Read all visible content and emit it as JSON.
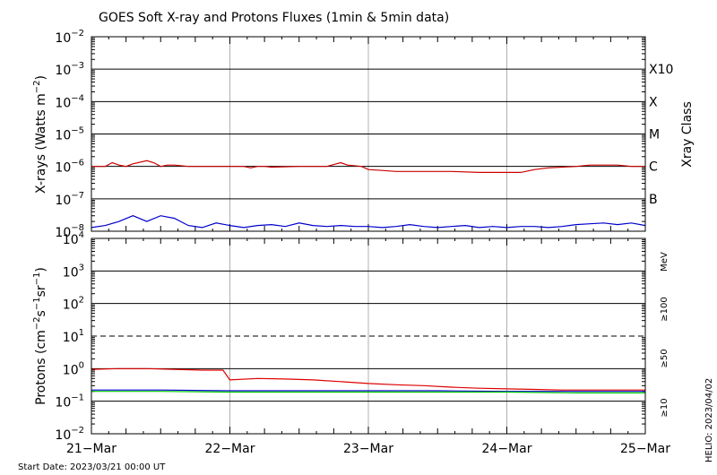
{
  "chart_data": [
    {
      "panel": "xray",
      "type": "line",
      "title": "GOES Soft X-ray and Protons Fluxes   (1min & 5min data)",
      "ylabel_base": "X-rays (Watts m",
      "ylabel_exp": "−2",
      "ylabel_close": ")",
      "ylabel_right": "Xray Class",
      "yscale": "log",
      "ylim_exp": [
        -8,
        -2
      ],
      "ytick_exps": [
        -8,
        -7,
        -6,
        -5,
        -4,
        -3,
        -2
      ],
      "ytick_exp_labels": [
        "−8",
        "−7",
        "−6",
        "−5",
        "−4",
        "−3",
        "−2"
      ],
      "ytick_base": "10",
      "classes": [
        {
          "label": "B",
          "exp": -7
        },
        {
          "label": "C",
          "exp": -6
        },
        {
          "label": "M",
          "exp": -5
        },
        {
          "label": "X",
          "exp": -4
        },
        {
          "label": "X10",
          "exp": -3
        }
      ],
      "series": [
        {
          "color": "#cc0000",
          "x": [
            0,
            0.1,
            0.15,
            0.2,
            0.25,
            0.3,
            0.4,
            0.45,
            0.5,
            0.55,
            0.6,
            0.7,
            0.8,
            0.9,
            1.0,
            1.1,
            1.15,
            1.2,
            1.25,
            1.3,
            1.5,
            1.7,
            1.8,
            1.85,
            1.95,
            2.0,
            2.1,
            2.2,
            2.4,
            2.6,
            2.8,
            3.0,
            3.1,
            3.2,
            3.3,
            3.5,
            3.6,
            3.7,
            3.8,
            3.9,
            4.0
          ],
          "y": [
            1e-06,
            1e-06,
            1.3e-06,
            1.1e-06,
            1e-06,
            1.2e-06,
            1.5e-06,
            1.3e-06,
            1e-06,
            1.1e-06,
            1.1e-06,
            1e-06,
            1e-06,
            1e-06,
            1e-06,
            1e-06,
            9e-07,
            1e-06,
            1e-06,
            9.5e-07,
            1e-06,
            1e-06,
            1.3e-06,
            1.1e-06,
            1e-06,
            8e-07,
            7.5e-07,
            7e-07,
            7e-07,
            7e-07,
            6.5e-07,
            6.5e-07,
            6.5e-07,
            8e-07,
            9e-07,
            1e-06,
            1.1e-06,
            1.1e-06,
            1.1e-06,
            1e-06,
            1e-06
          ]
        },
        {
          "color": "#0000cc",
          "x": [
            0,
            0.1,
            0.2,
            0.3,
            0.4,
            0.5,
            0.6,
            0.7,
            0.8,
            0.9,
            1.0,
            1.1,
            1.2,
            1.3,
            1.4,
            1.5,
            1.6,
            1.7,
            1.8,
            1.9,
            2.0,
            2.1,
            2.2,
            2.3,
            2.4,
            2.5,
            2.6,
            2.7,
            2.8,
            2.9,
            3.0,
            3.1,
            3.2,
            3.3,
            3.4,
            3.5,
            3.6,
            3.7,
            3.8,
            3.9,
            4.0
          ],
          "y": [
            1.3e-08,
            1.5e-08,
            2e-08,
            3e-08,
            2e-08,
            3e-08,
            2.5e-08,
            1.5e-08,
            1.3e-08,
            1.8e-08,
            1.5e-08,
            1.3e-08,
            1.5e-08,
            1.6e-08,
            1.4e-08,
            1.8e-08,
            1.5e-08,
            1.4e-08,
            1.5e-08,
            1.4e-08,
            1.4e-08,
            1.3e-08,
            1.4e-08,
            1.6e-08,
            1.4e-08,
            1.3e-08,
            1.4e-08,
            1.5e-08,
            1.3e-08,
            1.4e-08,
            1.3e-08,
            1.4e-08,
            1.4e-08,
            1.3e-08,
            1.4e-08,
            1.6e-08,
            1.7e-08,
            1.8e-08,
            1.6e-08,
            1.8e-08,
            1.5e-08
          ]
        }
      ]
    },
    {
      "panel": "protons",
      "type": "line",
      "ylabel_base": "Protons (cm",
      "ylabel_parts": [
        "−2",
        "s",
        "−1",
        "sr",
        "−1"
      ],
      "ylabel_close": ")",
      "yscale": "log",
      "ylim_exp": [
        -2,
        4
      ],
      "ytick_exps": [
        -2,
        -1,
        0,
        1,
        2,
        3,
        4
      ],
      "ytick_exp_labels": [
        "−2",
        "−1",
        "0",
        "1",
        "2",
        "3",
        "4"
      ],
      "ytick_base": "10",
      "threshold_exp": 1,
      "xlim": [
        0,
        4
      ],
      "xtick_labels": [
        "21−Mar",
        "22−Mar",
        "23−Mar",
        "24−Mar",
        "25−Mar"
      ],
      "right_labels": [
        {
          "label": "MeV",
          "color": "#000000"
        },
        {
          "label": "≥100",
          "color": "#00cc00"
        },
        {
          "label": "≥50",
          "color": "#0000cc"
        },
        {
          "label": "≥10",
          "color": "#cc0000"
        }
      ],
      "series": [
        {
          "name": "≥10",
          "color": "#dd0000",
          "x": [
            0,
            0.2,
            0.4,
            0.6,
            0.8,
            0.95,
            1.0,
            1.2,
            1.4,
            1.6,
            1.8,
            2.0,
            2.2,
            2.4,
            2.6,
            2.8,
            3.0,
            3.2,
            3.4,
            3.6,
            3.8,
            4.0
          ],
          "y": [
            0.95,
            1.0,
            1.0,
            0.95,
            0.9,
            0.9,
            0.45,
            0.5,
            0.48,
            0.45,
            0.4,
            0.35,
            0.32,
            0.3,
            0.27,
            0.25,
            0.24,
            0.23,
            0.22,
            0.22,
            0.22,
            0.22
          ]
        },
        {
          "name": "≥50",
          "color": "#0000cc",
          "x": [
            0,
            0.5,
            1.0,
            1.5,
            2.0,
            2.5,
            3.0,
            3.5,
            4.0
          ],
          "y": [
            0.22,
            0.22,
            0.21,
            0.21,
            0.21,
            0.21,
            0.2,
            0.2,
            0.2
          ]
        },
        {
          "name": "≥100",
          "color": "#00cc00",
          "x": [
            0,
            0.5,
            1.0,
            1.5,
            2.0,
            2.5,
            3.0,
            3.5,
            4.0
          ],
          "y": [
            0.2,
            0.2,
            0.19,
            0.19,
            0.19,
            0.19,
            0.19,
            0.18,
            0.18
          ]
        }
      ]
    }
  ],
  "footer": {
    "start_date": "Start Date: 2023/03/21 00:00 UT",
    "credit": "HELIO: 2023/04/02"
  }
}
